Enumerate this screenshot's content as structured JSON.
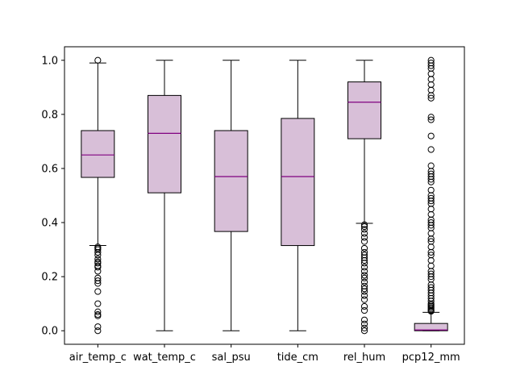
{
  "chart_data": {
    "type": "box",
    "title": "",
    "xlabel": "",
    "ylabel": "",
    "ylim": [
      -0.05,
      1.05
    ],
    "yticks": [
      "0.0",
      "0.2",
      "0.4",
      "0.6",
      "0.8",
      "1.0"
    ],
    "grid": false,
    "colors": {
      "box_fill": "#d8bfd8",
      "median": "#800080",
      "stroke": "#000000"
    },
    "categories": [
      "air_temp_c",
      "wat_temp_c",
      "sal_psu",
      "tide_cm",
      "rel_hum",
      "pcp12_mm"
    ],
    "boxes": [
      {
        "label": "air_temp_c",
        "whislo": 0.315,
        "q1": 0.567,
        "med": 0.65,
        "q3": 0.74,
        "whishi": 0.99,
        "fliers": [
          1.0,
          0.31,
          0.305,
          0.3,
          0.29,
          0.28,
          0.265,
          0.255,
          0.25,
          0.24,
          0.235,
          0.22,
          0.195,
          0.185,
          0.175,
          0.145,
          0.1,
          0.07,
          0.06,
          0.055,
          0.015,
          0.0
        ]
      },
      {
        "label": "wat_temp_c",
        "whislo": 0.0,
        "q1": 0.51,
        "med": 0.73,
        "q3": 0.87,
        "whishi": 1.0,
        "fliers": []
      },
      {
        "label": "sal_psu",
        "whislo": 0.0,
        "q1": 0.367,
        "med": 0.57,
        "q3": 0.74,
        "whishi": 1.0,
        "fliers": []
      },
      {
        "label": "tide_cm",
        "whislo": 0.0,
        "q1": 0.315,
        "med": 0.57,
        "q3": 0.785,
        "whishi": 1.0,
        "fliers": []
      },
      {
        "label": "rel_hum",
        "whislo": 0.397,
        "q1": 0.71,
        "med": 0.845,
        "q3": 0.92,
        "whishi": 1.0,
        "fliers": [
          0.392,
          0.385,
          0.375,
          0.36,
          0.345,
          0.33,
          0.305,
          0.29,
          0.28,
          0.27,
          0.26,
          0.25,
          0.235,
          0.22,
          0.205,
          0.195,
          0.18,
          0.165,
          0.155,
          0.145,
          0.13,
          0.115,
          0.09,
          0.075,
          0.04,
          0.025,
          0.01,
          0.0
        ]
      },
      {
        "label": "pcp12_mm",
        "whislo": 0.0,
        "q1": 0.0,
        "med": 0.003,
        "q3": 0.027,
        "whishi": 0.068,
        "fliers": [
          1.0,
          0.99,
          0.98,
          0.97,
          0.95,
          0.93,
          0.91,
          0.89,
          0.87,
          0.86,
          0.79,
          0.78,
          0.72,
          0.67,
          0.61,
          0.59,
          0.58,
          0.57,
          0.56,
          0.55,
          0.52,
          0.5,
          0.49,
          0.48,
          0.47,
          0.45,
          0.43,
          0.41,
          0.4,
          0.39,
          0.38,
          0.36,
          0.34,
          0.33,
          0.31,
          0.29,
          0.28,
          0.26,
          0.24,
          0.22,
          0.21,
          0.2,
          0.19,
          0.17,
          0.16,
          0.15,
          0.14,
          0.13,
          0.12,
          0.11,
          0.1,
          0.095,
          0.09,
          0.085,
          0.08,
          0.075,
          0.072
        ]
      }
    ]
  }
}
